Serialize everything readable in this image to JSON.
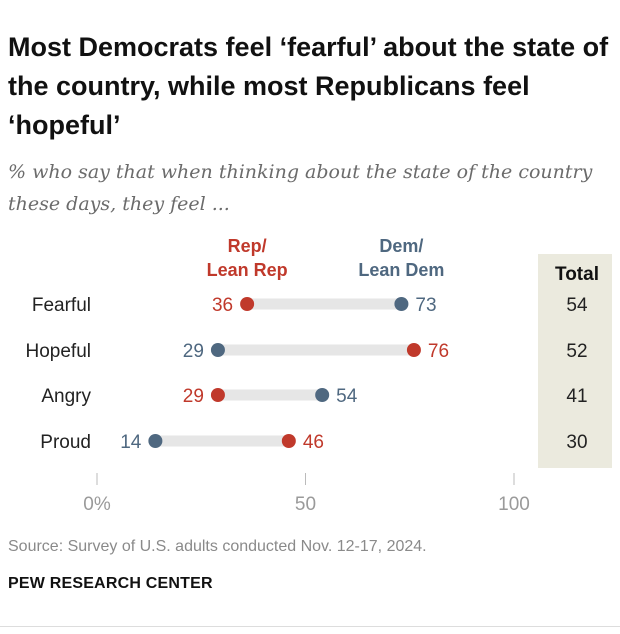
{
  "header": {
    "title": "Most Democrats feel ‘fearful’ about the state of the country, while most Republicans feel ‘hopeful’",
    "subtitle": "% who say that when thinking about the state of the country these days, they feel ..."
  },
  "footer": {
    "source": "Source: Survey of U.S. adults conducted Nov. 12-17, 2024.",
    "brand": "PEW RESEARCH CENTER"
  },
  "chart_data": {
    "type": "dot",
    "categories": [
      "Fearful",
      "Hopeful",
      "Angry",
      "Proud"
    ],
    "series": [
      {
        "name": "Rep/ Lean Rep",
        "label_lines": [
          "Rep/",
          "Lean Rep"
        ],
        "color": "#c0392b",
        "values": [
          36,
          76,
          29,
          46
        ]
      },
      {
        "name": "Dem/ Lean Dem",
        "label_lines": [
          "Dem/",
          "Lean Dem"
        ],
        "color": "#4f6880",
        "values": [
          73,
          29,
          54,
          14
        ]
      }
    ],
    "total": {
      "label": "Total",
      "values": [
        54,
        52,
        41,
        30
      ]
    },
    "xlim": [
      0,
      100
    ],
    "xticks": [
      0,
      50,
      100
    ],
    "xtick_labels": [
      "0%",
      "50",
      "100"
    ]
  },
  "colors": {
    "rep": "#c0392b",
    "dem": "#4f6880",
    "connector": "#e6e6e6",
    "total_panel": "#ebeade"
  }
}
